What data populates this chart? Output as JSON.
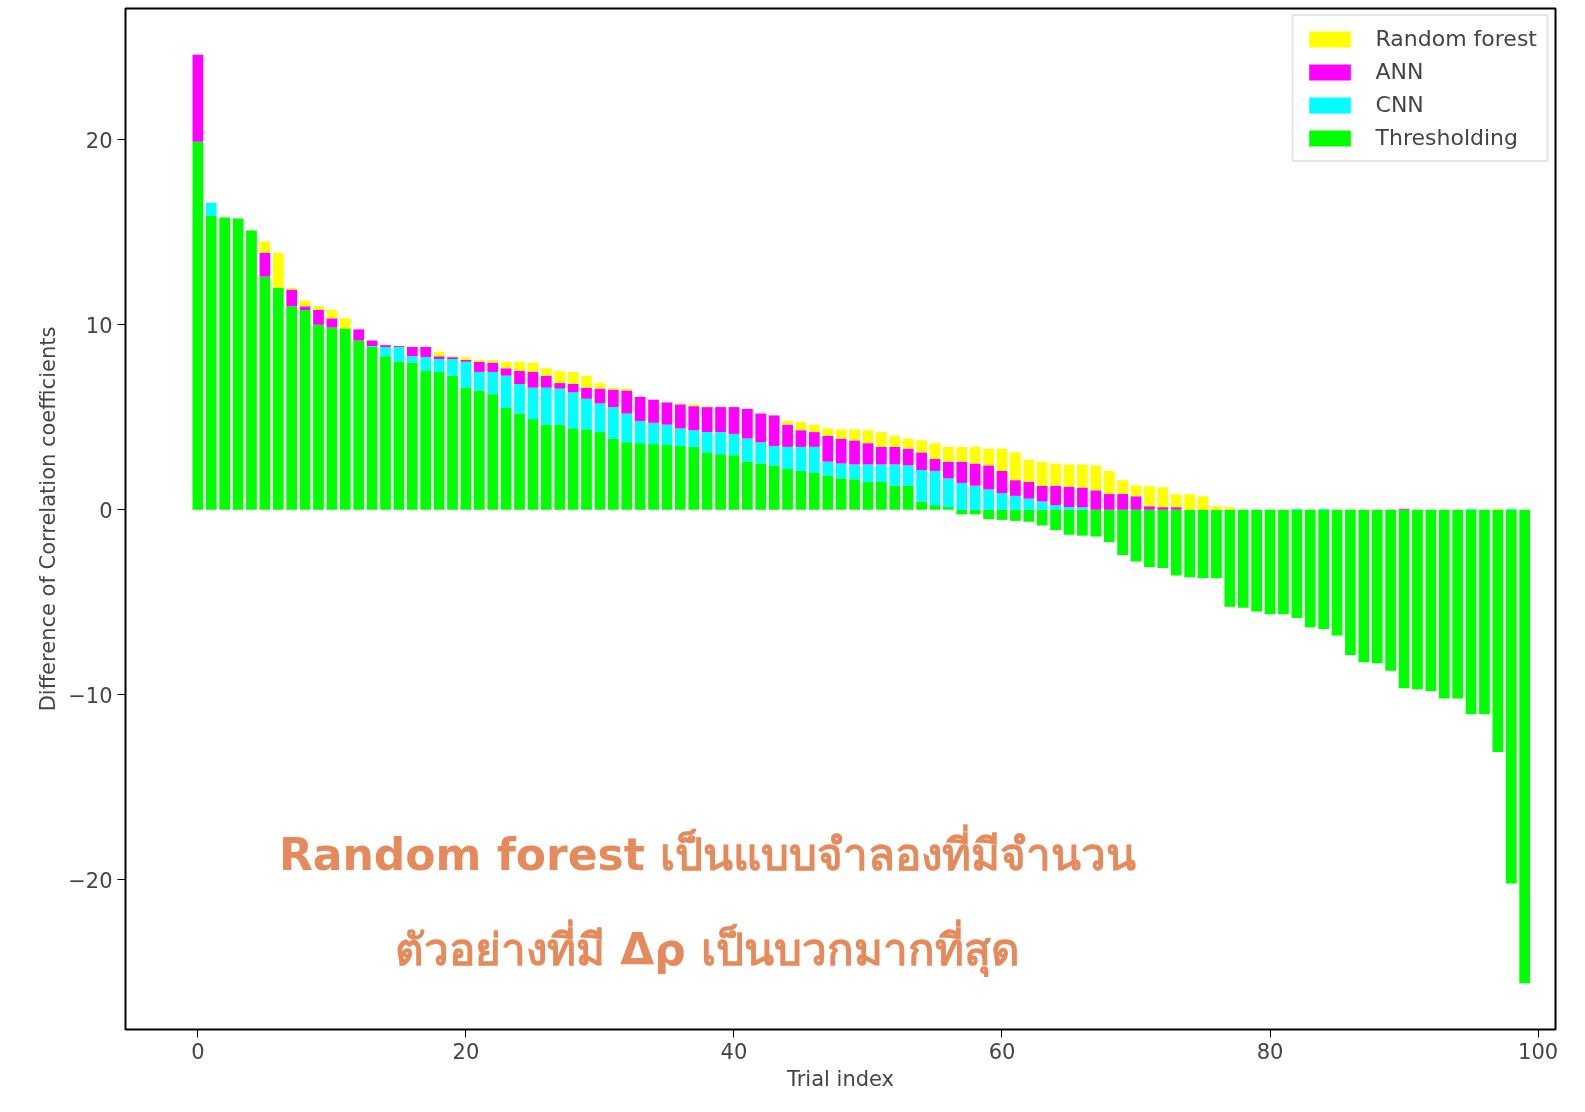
{
  "chart_data": {
    "type": "bar",
    "xlabel": "Trial index",
    "ylabel": "Difference of Correlation coefficients",
    "x": [
      0,
      1,
      2,
      3,
      4,
      5,
      6,
      7,
      8,
      9,
      10,
      11,
      12,
      13,
      14,
      15,
      16,
      17,
      18,
      19,
      20,
      21,
      22,
      23,
      24,
      25,
      26,
      27,
      28,
      29,
      30,
      31,
      32,
      33,
      34,
      35,
      36,
      37,
      38,
      39,
      40,
      41,
      42,
      43,
      44,
      45,
      46,
      47,
      48,
      49,
      50,
      51,
      52,
      53,
      54,
      55,
      56,
      57,
      58,
      59,
      60,
      61,
      62,
      63,
      64,
      65,
      66,
      67,
      68,
      69,
      70,
      71,
      72,
      73,
      74,
      75,
      76,
      77,
      78,
      79,
      80,
      81,
      82,
      83,
      84,
      85,
      86,
      87,
      88,
      89,
      90,
      91,
      92,
      93,
      94,
      95,
      96,
      97,
      98,
      99
    ],
    "series": [
      {
        "name": "Thresholding",
        "color": "#00ff00",
        "values": [
          19.9,
          15.9,
          15.8,
          15.75,
          15.1,
          12.6,
          12.0,
          11.0,
          10.8,
          10.0,
          9.85,
          9.8,
          9.15,
          8.8,
          8.3,
          8.0,
          7.95,
          7.5,
          7.45,
          7.25,
          6.6,
          6.45,
          6.25,
          5.5,
          5.2,
          4.9,
          4.6,
          4.6,
          4.4,
          4.35,
          4.2,
          3.85,
          3.65,
          3.6,
          3.55,
          3.5,
          3.45,
          3.4,
          3.1,
          3.0,
          2.95,
          2.6,
          2.5,
          2.4,
          2.2,
          2.1,
          2.0,
          1.85,
          1.7,
          1.65,
          1.5,
          1.5,
          1.3,
          1.3,
          0.45,
          0.25,
          0.15,
          -0.25,
          -0.25,
          -0.5,
          -0.55,
          -0.6,
          -0.65,
          -0.85,
          -1.1,
          -1.35,
          -1.4,
          -1.45,
          -1.75,
          -2.45,
          -2.8,
          -3.1,
          -3.15,
          -3.55,
          -3.65,
          -3.7,
          -3.7,
          -5.25,
          -5.3,
          -5.5,
          -5.65,
          -5.65,
          -5.85,
          -6.35,
          -6.45,
          -6.8,
          -7.85,
          -8.25,
          -8.3,
          -8.7,
          -9.65,
          -9.7,
          -9.8,
          -10.2,
          -10.2,
          -11.05,
          -11.05,
          -13.1,
          -20.2,
          -25.6
        ]
      },
      {
        "name": "CNN",
        "color": "#00ffff",
        "values": [
          null,
          0.7,
          null,
          null,
          null,
          null,
          null,
          null,
          null,
          null,
          null,
          null,
          null,
          0.05,
          0.5,
          0.8,
          0.35,
          0.75,
          0.7,
          0.9,
          1.4,
          1.0,
          1.2,
          1.75,
          1.6,
          1.7,
          2.0,
          1.95,
          1.95,
          1.65,
          1.55,
          1.7,
          1.55,
          1.2,
          1.15,
          1.1,
          0.95,
          0.9,
          1.1,
          1.2,
          1.15,
          1.25,
          1.15,
          1.05,
          1.2,
          1.3,
          1.4,
          0.75,
          0.8,
          0.8,
          0.95,
          0.95,
          1.15,
          1.1,
          1.7,
          1.85,
          1.55,
          1.45,
          1.3,
          1.1,
          0.9,
          0.75,
          0.6,
          0.45,
          0.25,
          0.15,
          0.13,
          null,
          null,
          null,
          null,
          null,
          null,
          null,
          null,
          null,
          null,
          null,
          null,
          null,
          null,
          null,
          0.05,
          null,
          0.05,
          null,
          null,
          null,
          null,
          null,
          null,
          null,
          null,
          null,
          null,
          0.05,
          null,
          null,
          0.05,
          null
        ]
      },
      {
        "name": "ANN",
        "color": "#ff00ff",
        "values": [
          4.7,
          null,
          null,
          null,
          null,
          1.3,
          null,
          0.9,
          0.2,
          0.8,
          0.5,
          null,
          0.6,
          0.3,
          0.1,
          0.05,
          0.5,
          0.55,
          0.15,
          0.1,
          0.1,
          0.55,
          0.5,
          0.4,
          0.7,
          0.85,
          0.65,
          0.3,
          0.45,
          0.6,
          0.8,
          0.95,
          1.25,
          1.3,
          1.25,
          1.2,
          1.3,
          1.3,
          1.35,
          1.35,
          1.45,
          1.6,
          1.55,
          1.65,
          1.2,
          0.9,
          0.8,
          1.4,
          1.35,
          1.3,
          1.15,
          0.95,
          0.95,
          0.9,
          0.95,
          0.65,
          0.9,
          1.15,
          1.2,
          1.3,
          1.2,
          0.85,
          0.9,
          0.85,
          1.05,
          1.1,
          1.07,
          1.05,
          0.85,
          0.85,
          0.73,
          0.19,
          0.14,
          0.14,
          null,
          null,
          null,
          null,
          null,
          null,
          null,
          null,
          null,
          null,
          null,
          null,
          null,
          null,
          null,
          null,
          0.05,
          null,
          null,
          null,
          null,
          null,
          null,
          null,
          null,
          null
        ]
      },
      {
        "name": "Random forest",
        "color": "#ffff00",
        "values": [
          null,
          null,
          null,
          null,
          null,
          0.6,
          1.9,
          0.1,
          0.3,
          0.2,
          0.45,
          0.55,
          null,
          null,
          null,
          null,
          null,
          null,
          0.25,
          0.05,
          0.15,
          0.1,
          0.15,
          0.35,
          0.5,
          0.5,
          0.4,
          0.65,
          0.65,
          0.65,
          0.3,
          0.1,
          0.1,
          null,
          null,
          null,
          0.05,
          0.1,
          0.05,
          null,
          null,
          null,
          null,
          null,
          0.2,
          0.45,
          0.4,
          0.4,
          0.5,
          0.6,
          0.7,
          0.8,
          0.6,
          0.55,
          0.65,
          0.85,
          0.8,
          0.8,
          0.9,
          0.9,
          1.2,
          1.5,
          1.2,
          1.3,
          1.2,
          1.2,
          1.25,
          1.35,
          1.25,
          0.75,
          0.59,
          1.08,
          1.08,
          0.7,
          0.84,
          0.73,
          0.19,
          0.14,
          null,
          null,
          null,
          null,
          null,
          null,
          null,
          null,
          null,
          null,
          null,
          null,
          null,
          null,
          null,
          null,
          null,
          null,
          null,
          0.05,
          null,
          null
        ]
      }
    ],
    "stacked": true,
    "xlim": [
      -5.4,
      101.3
    ],
    "ylim": [
      -28.1,
      27.1
    ],
    "xticks": [
      0,
      20,
      40,
      60,
      80,
      100
    ],
    "yticks": [
      {
        "value": -20,
        "label": "−20"
      },
      {
        "value": -10,
        "label": "−10"
      },
      0,
      10,
      20
    ],
    "grid": false,
    "legend": "top right",
    "annotations": [
      "Random forest เป็นแบบจำลองที่มีจำนวน\nตัวอย่างที่มี Δρ เป็นบวกมากที่สุด"
    ]
  }
}
